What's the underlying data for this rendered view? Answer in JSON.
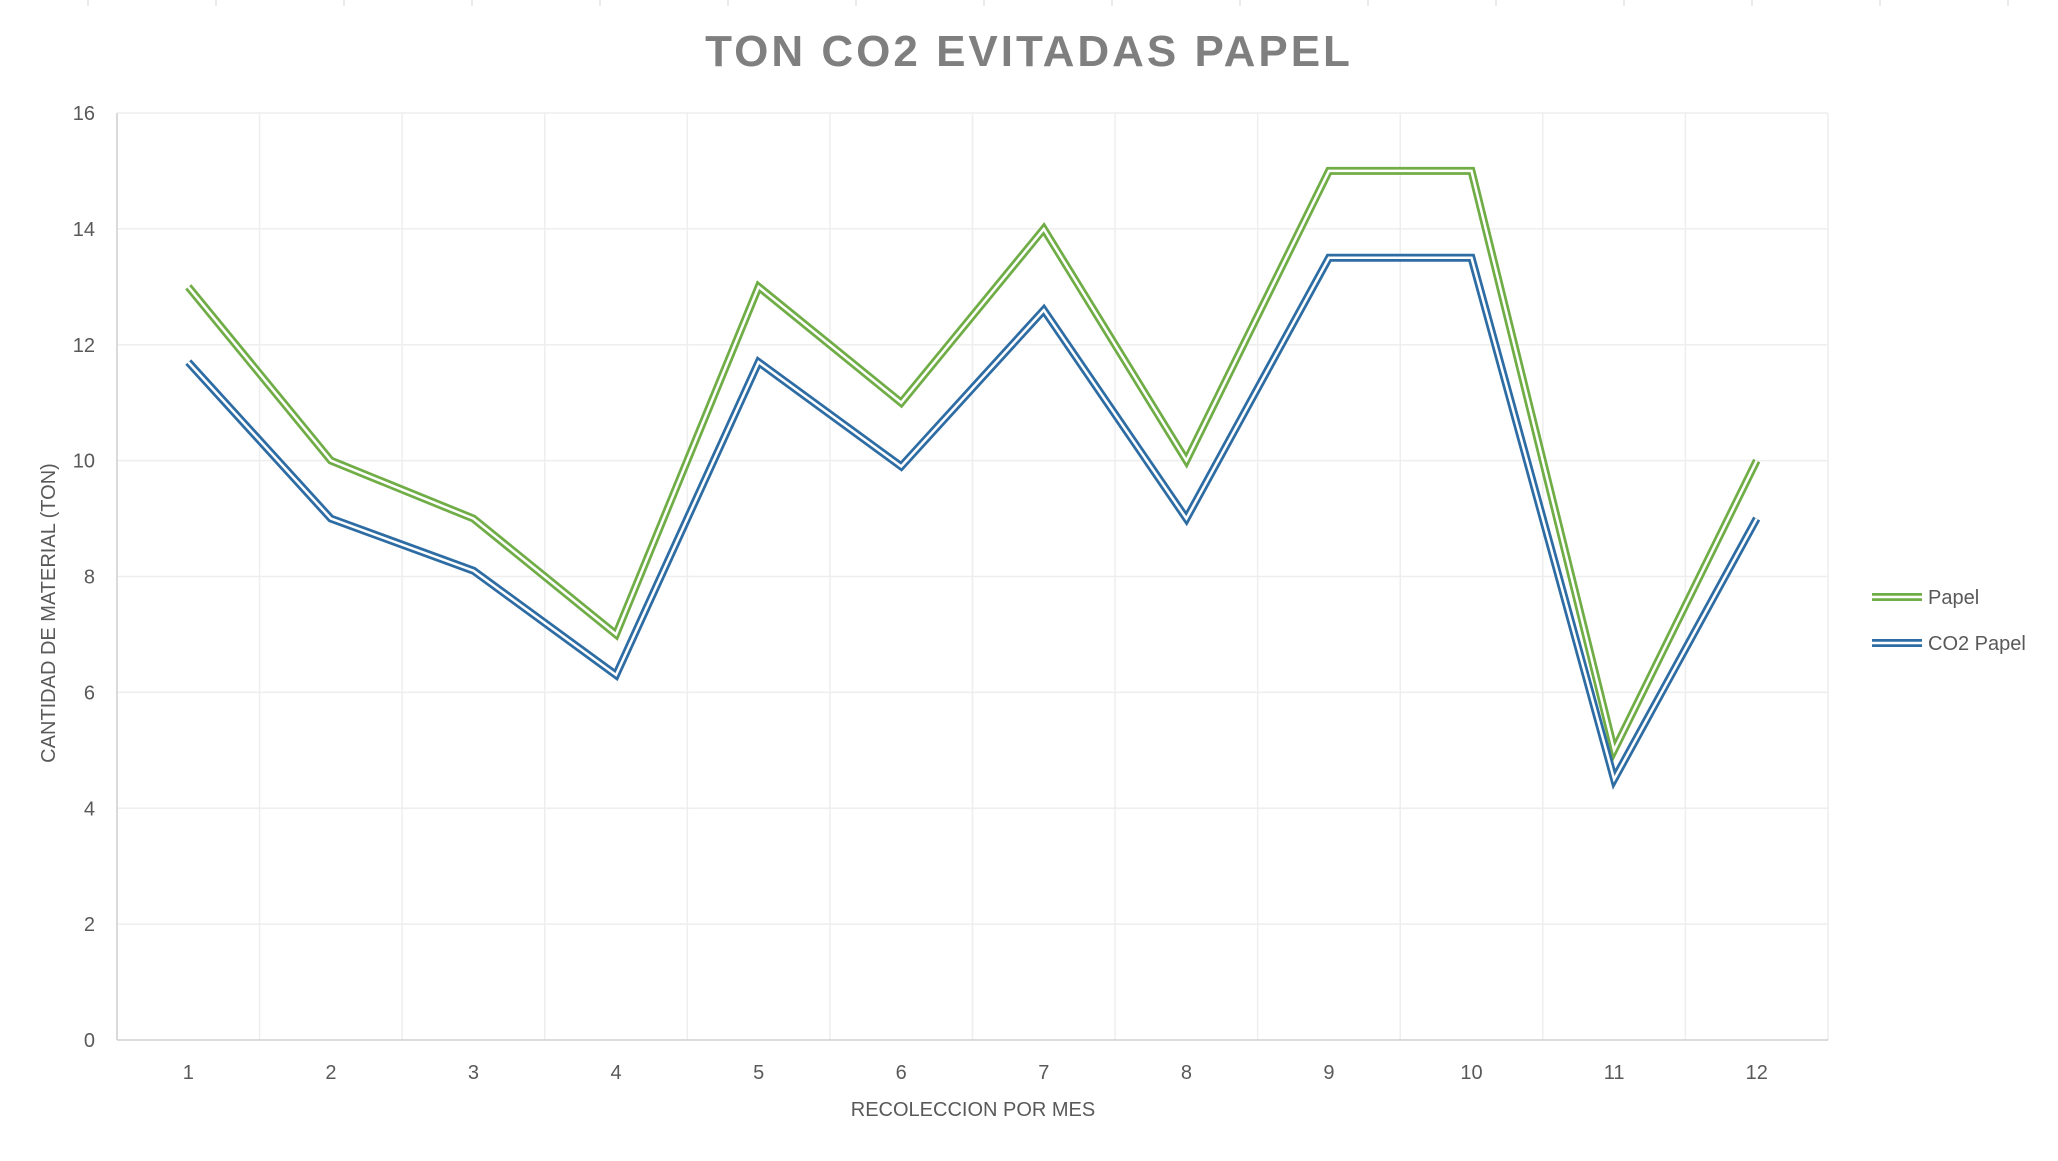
{
  "chart_data": {
    "type": "line",
    "title": "TON CO2 EVITADAS PAPEL",
    "xlabel": "RECOLECCION POR MES",
    "ylabel": "CANTIDAD DE MATERIAL (TON)",
    "categories": [
      "1",
      "2",
      "3",
      "4",
      "5",
      "6",
      "7",
      "8",
      "9",
      "10",
      "11",
      "12"
    ],
    "ylim": [
      0,
      16
    ],
    "yticks": [
      "0",
      "2",
      "4",
      "6",
      "8",
      "10",
      "12",
      "14",
      "16"
    ],
    "grid": true,
    "legend_position": "right",
    "series": [
      {
        "name": "Papel",
        "color": "#70ad47",
        "values": [
          13,
          10,
          9,
          7,
          13,
          11,
          14,
          10,
          15,
          15,
          5,
          10
        ]
      },
      {
        "name": "CO2 Papel",
        "color": "#2e6ca4",
        "values": [
          11.7,
          9,
          8.1,
          6.3,
          11.7,
          9.9,
          12.6,
          9,
          13.5,
          13.5,
          4.5,
          9
        ]
      }
    ]
  }
}
